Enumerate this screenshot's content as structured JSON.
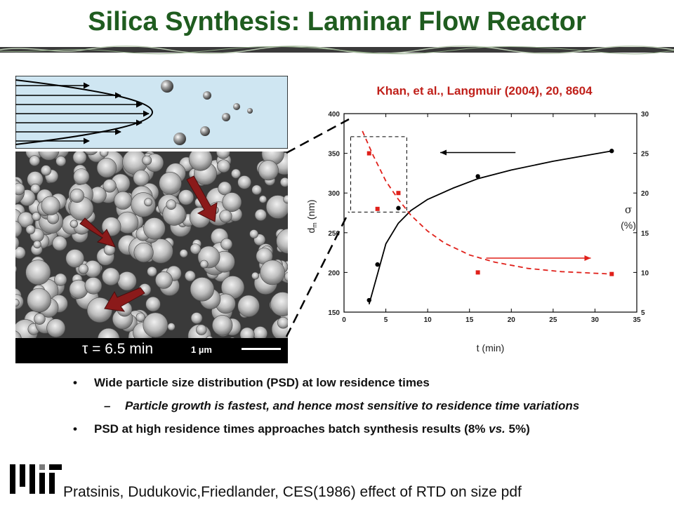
{
  "slide": {
    "title": "Silica Synthesis: Laminar Flow Reactor",
    "citation": "Khan, et al., Langmuir (2004), 20, 8604",
    "sem_caption": "τ = 6.5 min",
    "scale_label": "1 µm",
    "bullets": {
      "b1": "Wide particle size distribution (PSD) at low residence times",
      "b1_sub": "Particle growth is fastest, and hence most sensitive to residence time variations",
      "b2_main": "PSD at high residence times approaches batch synthesis results (8% ",
      "b2_vs": "vs.",
      "b2_end": " 5%)",
      "bullet_glyph": "•",
      "dash_glyph": "–"
    },
    "footer": "Pratsinis, Dudukovic,Friedlander, CES(1986) effect of RTD on size pdf",
    "logo": "MIT"
  },
  "colors": {
    "title": "#1f5c1f",
    "citation": "#c0201a",
    "red_series": "#e0201a",
    "black_series": "#000000",
    "arrow_red": "#8b1a1a"
  },
  "chart_data": {
    "type": "scatter",
    "xlabel": "t (min)",
    "ylabel": "d_m (nm)",
    "ylabel_main": "d",
    "ylabel_sub": "m",
    "ylabel_unit": "(nm)",
    "y2label_symbol": "σ",
    "y2label_unit": "(%)",
    "xlim": [
      0,
      35
    ],
    "ylim": [
      150,
      400
    ],
    "y2lim": [
      5,
      30
    ],
    "xticks": [
      0,
      5,
      10,
      15,
      20,
      25,
      30,
      35
    ],
    "yticks": [
      150,
      200,
      250,
      300,
      350,
      400
    ],
    "y2ticks": [
      5,
      10,
      15,
      20,
      25,
      30
    ],
    "series": [
      {
        "axis": "left",
        "marker": "circle",
        "color": "#000000",
        "x": [
          3,
          4,
          6.5,
          16,
          32
        ],
        "y": [
          165,
          210,
          281,
          321,
          353
        ],
        "fit": [
          [
            3,
            160
          ],
          [
            4,
            198
          ],
          [
            5,
            236
          ],
          [
            6.5,
            262
          ],
          [
            8,
            278
          ],
          [
            10,
            292
          ],
          [
            13,
            306
          ],
          [
            16,
            318
          ],
          [
            20,
            329
          ],
          [
            25,
            340
          ],
          [
            32,
            353
          ]
        ]
      },
      {
        "axis": "right",
        "marker": "square",
        "color": "#e0201a",
        "x": [
          3,
          4,
          6.5,
          16,
          32
        ],
        "y": [
          25,
          18,
          20,
          10,
          9.8
        ],
        "fit": [
          [
            2.2,
            27.8
          ],
          [
            3.5,
            24.7
          ],
          [
            5,
            21.5
          ],
          [
            6.5,
            19.2
          ],
          [
            8,
            17.2
          ],
          [
            10,
            15.2
          ],
          [
            12,
            13.7
          ],
          [
            15,
            12.2
          ],
          [
            18,
            11.3
          ],
          [
            22,
            10.5
          ],
          [
            26,
            10.1
          ],
          [
            32,
            9.8
          ]
        ]
      }
    ],
    "arrows": [
      {
        "color": "#000000",
        "y_axis": "left",
        "y": 351,
        "x_from": 20.5,
        "x_to": 11.5
      },
      {
        "color": "#e0201a",
        "y_axis": "left",
        "y": 218,
        "x_from": 17,
        "x_to": 29.5
      }
    ],
    "highlight_box": {
      "x": [
        0.8,
        7.5
      ],
      "y": [
        276,
        371
      ]
    }
  }
}
